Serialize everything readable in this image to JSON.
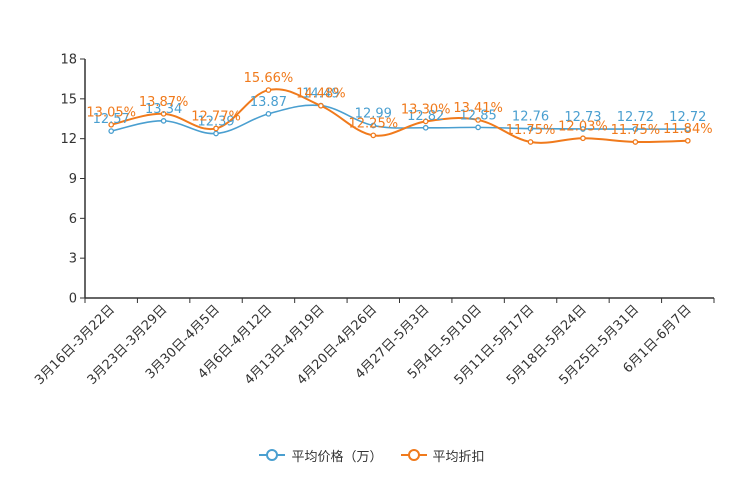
{
  "chart_data": {
    "type": "line",
    "title": "",
    "xlabel": "",
    "ylabel": "",
    "ylim": [
      0,
      18
    ],
    "yticks": [
      "0",
      "3",
      "6",
      "9",
      "12",
      "15",
      "18"
    ],
    "categories": [
      "3月16日-3月22日",
      "3月23日-3月29日",
      "3月30日-4月5日",
      "4月6日-4月12日",
      "4月13日-4月19日",
      "4月20日-4月26日",
      "4月27日-5月3日",
      "5月4日-5月10日",
      "5月11日-5月17日",
      "5月18日-5月24日",
      "5月25日-5月31日",
      "6月1日-6月7日"
    ],
    "series": [
      {
        "name": "平均价格（万）",
        "color": "#4a9fd0",
        "values": [
          12.57,
          13.34,
          12.39,
          13.87,
          14.49,
          12.99,
          12.82,
          12.85,
          12.76,
          12.73,
          12.72,
          12.72
        ],
        "labels": [
          "12.57",
          "13.34",
          "12.39",
          "13.87",
          "14.49",
          "12.99",
          "12.82",
          "12.85",
          "12.76",
          "12.73",
          "12.72",
          "12.72"
        ]
      },
      {
        "name": "平均折扣",
        "color": "#f07a1c",
        "values": [
          13.05,
          13.87,
          12.77,
          15.66,
          14.48,
          12.25,
          13.3,
          13.41,
          11.75,
          12.03,
          11.75,
          11.84
        ],
        "labels": [
          "13.05%",
          "13.87%",
          "12.77%",
          "15.66%",
          "14.48%",
          "12.25%",
          "13.30%",
          "13.41%",
          "11.75%",
          "12.03%",
          "11.75%",
          "11.84%"
        ]
      }
    ],
    "legend_position": "bottom-center",
    "grid": false
  }
}
